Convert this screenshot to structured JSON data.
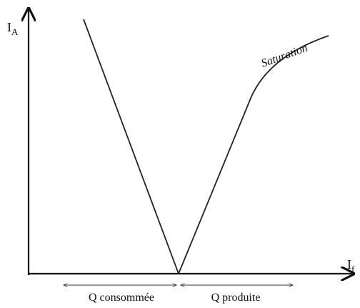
{
  "axes": {
    "y_label": "I",
    "y_subscript": "A",
    "x_label": "I",
    "x_subscript": "f"
  },
  "curve_label": "Saturation",
  "regions": [
    "Q consommée",
    "Q produite"
  ]
}
